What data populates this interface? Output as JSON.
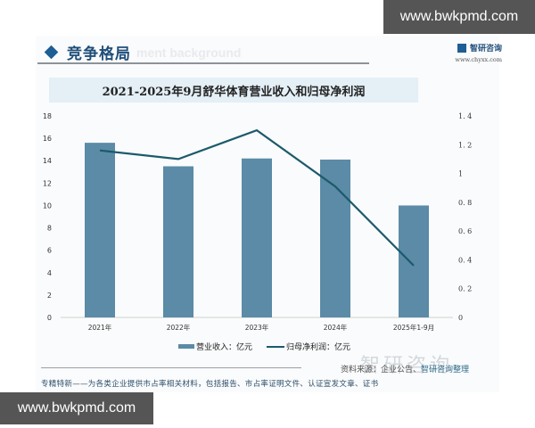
{
  "watermarks": {
    "top": "www.bwkpmd.com",
    "bottom": "www.bwkpmd.com"
  },
  "section": {
    "title": "竞争格局",
    "ghost_text": "ment background"
  },
  "brand": {
    "name": "智研咨询",
    "url": "www.chyxx.com"
  },
  "legend": {
    "bar_label": "营业收入：亿元",
    "line_label": "归母净利润：亿元"
  },
  "source": {
    "prefix": "资料来源：企业公告、",
    "org": "智研咨询整理"
  },
  "big_brand": "智研咨询",
  "footer_note": "专精特新——为各类企业提供市占率相关材料，包括报告、市占率证明文件、认证宣发文章、证书",
  "colors": {
    "bar": "#5b8ba6",
    "line": "#1b5a6b",
    "title_band": "#e4eff6",
    "accent": "#1d5e95"
  },
  "chart_data": {
    "type": "bar+line",
    "title": "2021-2025年9月舒华体育营业收入和归母净利润",
    "categories": [
      "2021年",
      "2022年",
      "2023年",
      "2024年",
      "2025年1-9月"
    ],
    "series": [
      {
        "name": "营业收入：亿元",
        "type": "bar",
        "axis": "left",
        "values": [
          15.6,
          13.5,
          14.2,
          14.1,
          10.0
        ]
      },
      {
        "name": "归母净利润：亿元",
        "type": "line",
        "axis": "right",
        "values": [
          1.16,
          1.1,
          1.3,
          0.91,
          0.36
        ]
      }
    ],
    "left_axis": {
      "ylim": [
        0,
        18
      ],
      "ticks": [
        "0",
        "2",
        "4",
        "6",
        "8",
        "10",
        "12",
        "14",
        "16",
        "18"
      ]
    },
    "right_axis": {
      "ylim": [
        0,
        1.4
      ],
      "ticks": [
        "0",
        "0.2",
        "0.4",
        "0.6",
        "0.8",
        "1",
        "1.2",
        "1.4"
      ]
    },
    "xlabel": "",
    "ylabel": "",
    "grid": false,
    "legend_position": "bottom"
  }
}
